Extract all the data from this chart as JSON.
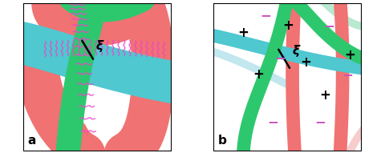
{
  "fig_width": 4.8,
  "fig_height": 1.91,
  "dpi": 100,
  "label_a": "a",
  "label_b": "b",
  "label_xi": "ξ",
  "coral": "#F07272",
  "teal": "#4FC8D0",
  "green": "#2DC86E",
  "pink": "#EE44CC",
  "purple_minus": "#CC55BB",
  "black": "#000000",
  "light_teal": "#A8DDE8",
  "light_green": "#88DDB0",
  "light_coral": "#F0AAAA"
}
